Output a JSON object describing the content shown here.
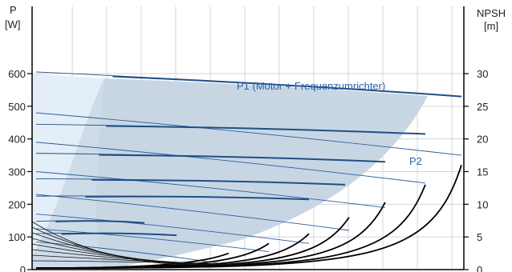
{
  "chart_data": {
    "type": "line",
    "left_axis": {
      "label_top": "P",
      "label_unit": "[W]",
      "ticks": [
        0,
        100,
        200,
        300,
        400,
        500,
        600
      ],
      "range": [
        0,
        700
      ]
    },
    "right_axis": {
      "label_top": "NPSH",
      "label_unit": "[m]",
      "ticks": [
        0,
        5,
        10,
        15,
        20,
        25,
        30
      ],
      "range": [
        0,
        35
      ]
    },
    "grid": true,
    "annotations": {
      "p1": "P1 (Motor + Frequenzumrichter)",
      "p2": "P2"
    },
    "colors": {
      "envelope_fill": "#c8d6e4",
      "envelope_light": "#e4eef8",
      "p1_line": "#1f4f85",
      "p2_line": "#2e5f96",
      "npsh_line": "#000000",
      "label": "#2b63a8"
    },
    "p1_curves": [
      {
        "x": [
          5,
          140
        ],
        "y": [
          148,
          143
        ]
      },
      {
        "x": [
          5,
          180
        ],
        "y": [
          110,
          105
        ]
      },
      {
        "x": [
          5,
          345
        ],
        "y": [
          225,
          215
        ]
      },
      {
        "x": [
          5,
          390
        ],
        "y": [
          278,
          260
        ]
      },
      {
        "x": [
          5,
          440
        ],
        "y": [
          356,
          330
        ]
      },
      {
        "x": [
          5,
          490
        ],
        "y": [
          445,
          415
        ]
      },
      {
        "x": [
          5,
          535
        ],
        "y": [
          605,
          530
        ]
      }
    ],
    "p2_curves": [
      {
        "x": [
          5,
          245
        ],
        "y": [
          85,
          15
        ]
      },
      {
        "x": [
          5,
          295
        ],
        "y": [
          125,
          55
        ]
      },
      {
        "x": [
          5,
          345
        ],
        "y": [
          170,
          80
        ]
      },
      {
        "x": [
          5,
          395
        ],
        "y": [
          230,
          120
        ]
      },
      {
        "x": [
          5,
          440
        ],
        "y": [
          300,
          190
        ]
      },
      {
        "x": [
          5,
          490
        ],
        "y": [
          390,
          265
        ]
      },
      {
        "x": [
          5,
          535
        ],
        "y": [
          480,
          350
        ]
      }
    ],
    "npsh_curves": [
      {
        "x_end": 245,
        "y_end": 2.5
      },
      {
        "x_end": 295,
        "y_end": 4.0
      },
      {
        "x_end": 345,
        "y_end": 5.5
      },
      {
        "x_end": 395,
        "y_end": 8.0
      },
      {
        "x_end": 440,
        "y_end": 10.3
      },
      {
        "x_end": 490,
        "y_end": 13.0
      },
      {
        "x_end": 535,
        "y_end": 16.0
      }
    ]
  }
}
